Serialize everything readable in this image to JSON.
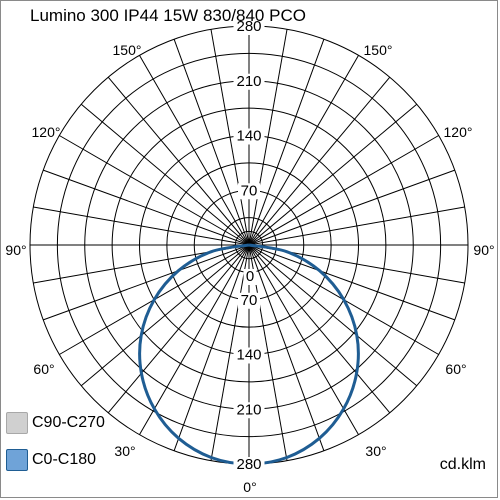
{
  "chart_data": {
    "type": "polar",
    "title": "Lumino 300 IP44 15W 830/840 PCO",
    "unit": "cd.klm",
    "radial_ticks": [
      70,
      140,
      210,
      280
    ],
    "radial_max": 280,
    "radial_tick_labels": [
      "0",
      "70",
      "140",
      "210",
      "280",
      "70",
      "140",
      "210",
      "280"
    ],
    "angle_labels": [
      "150°",
      "150°",
      "120°",
      "120°",
      "90°",
      "90°",
      "60°",
      "60°",
      "30°",
      "30°",
      "0°"
    ],
    "legend": [
      {
        "name": "C90-C270",
        "color": "#d0d0d0",
        "border": "#a8a8a8"
      },
      {
        "name": "C0-C180",
        "color": "#6fa3d8",
        "border": "#1f5d93"
      }
    ],
    "series": [
      {
        "name": "C0-C180",
        "color": "#1f5d93",
        "angles": [
          0,
          10,
          20,
          30,
          40,
          50,
          60,
          70,
          80,
          90
        ],
        "values": [
          280,
          276,
          263,
          242,
          214,
          180,
          140,
          96,
          49,
          0
        ]
      }
    ]
  }
}
